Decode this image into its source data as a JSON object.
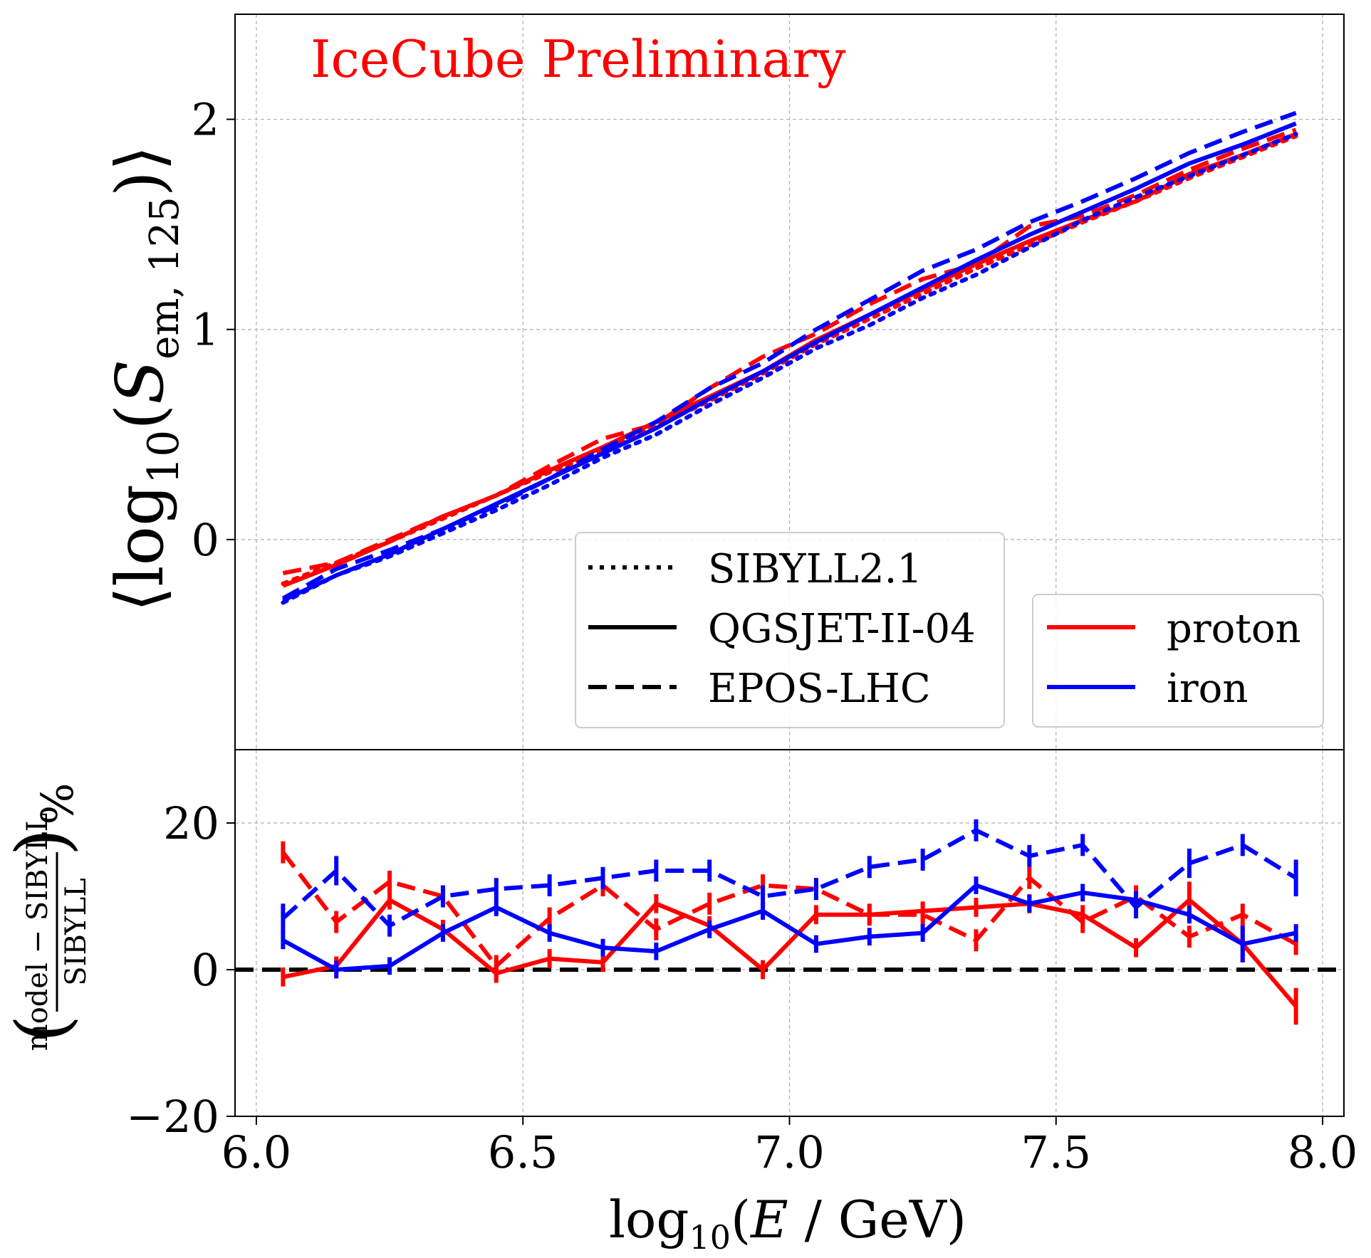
{
  "chart_data": [
    {
      "type": "line",
      "panel": "top",
      "annotation": "IceCube Preliminary",
      "ylabel_parts": {
        "open": "⟨log",
        "sub1": "10",
        "mid": "(",
        "var": "S",
        "sub2": "em, 125",
        "close": ")⟩"
      },
      "xlim": [
        5.96,
        8.04
      ],
      "ylim": [
        -1.0,
        2.5
      ],
      "yticks": [
        0,
        1,
        2
      ],
      "ytick_labels": [
        "0",
        "1",
        "2"
      ],
      "grid": true,
      "legend_models": {
        "placement": "lower-center",
        "entries": [
          {
            "label": "SIBYLL2.1",
            "style": "dotted"
          },
          {
            "label": "QGSJET-II-04",
            "style": "solid"
          },
          {
            "label": "EPOS-LHC",
            "style": "dashed"
          }
        ]
      },
      "legend_primaries": {
        "placement": "lower-right",
        "entries": [
          {
            "label": "proton",
            "color": "#ff0000"
          },
          {
            "label": "iron",
            "color": "#0000ff"
          }
        ]
      },
      "x": [
        6.05,
        6.15,
        6.25,
        6.35,
        6.45,
        6.55,
        6.65,
        6.75,
        6.85,
        6.95,
        7.05,
        7.15,
        7.25,
        7.35,
        7.45,
        7.55,
        7.65,
        7.75,
        7.85,
        7.95
      ],
      "series": [
        {
          "name": "proton SIBYLL2.1",
          "color": "#ff0000",
          "style": "dotted",
          "values": [
            -0.21,
            -0.11,
            -0.01,
            0.1,
            0.21,
            0.32,
            0.42,
            0.54,
            0.66,
            0.79,
            0.93,
            1.05,
            1.17,
            1.29,
            1.4,
            1.51,
            1.61,
            1.72,
            1.82,
            1.92
          ]
        },
        {
          "name": "proton QGSJET-II-04",
          "color": "#ff0000",
          "style": "solid",
          "values": [
            -0.22,
            -0.12,
            -0.01,
            0.11,
            0.21,
            0.33,
            0.44,
            0.56,
            0.68,
            0.8,
            0.95,
            1.07,
            1.19,
            1.31,
            1.42,
            1.52,
            1.61,
            1.74,
            1.83,
            1.93
          ]
        },
        {
          "name": "proton EPOS-LHC",
          "color": "#ff0000",
          "style": "dashed",
          "values": [
            -0.16,
            -0.11,
            0.0,
            0.11,
            0.21,
            0.35,
            0.48,
            0.55,
            0.72,
            0.87,
            0.98,
            1.12,
            1.24,
            1.31,
            1.49,
            1.54,
            1.64,
            1.76,
            1.86,
            1.95
          ]
        },
        {
          "name": "iron SIBYLL2.1",
          "color": "#0000ff",
          "style": "dotted",
          "values": [
            -0.3,
            -0.17,
            -0.08,
            0.03,
            0.14,
            0.26,
            0.39,
            0.5,
            0.64,
            0.77,
            0.91,
            1.02,
            1.15,
            1.26,
            1.39,
            1.52,
            1.63,
            1.73,
            1.83,
            1.93
          ]
        },
        {
          "name": "iron QGSJET-II-04",
          "color": "#0000ff",
          "style": "solid",
          "values": [
            -0.29,
            -0.17,
            -0.07,
            0.05,
            0.17,
            0.29,
            0.41,
            0.53,
            0.67,
            0.8,
            0.94,
            1.07,
            1.2,
            1.33,
            1.45,
            1.56,
            1.67,
            1.79,
            1.88,
            1.98
          ]
        },
        {
          "name": "iron EPOS-LHC",
          "color": "#0000ff",
          "style": "dashed",
          "values": [
            -0.28,
            -0.14,
            -0.05,
            0.05,
            0.16,
            0.29,
            0.43,
            0.56,
            0.72,
            0.84,
            1.0,
            1.14,
            1.28,
            1.38,
            1.51,
            1.61,
            1.72,
            1.84,
            1.94,
            2.03
          ]
        }
      ]
    },
    {
      "type": "line",
      "panel": "bottom",
      "xlabel_parts": {
        "pre": "log",
        "sub": "10",
        "mid": "(",
        "var": "E",
        "post": " / GeV)"
      },
      "ylabel_parts": {
        "numerator": "model − SIBYLL",
        "denominator": "SIBYLL",
        "suffix": "%"
      },
      "xlim": [
        5.96,
        8.04
      ],
      "ylim": [
        -20,
        30
      ],
      "xticks": [
        6.0,
        6.5,
        7.0,
        7.5,
        8.0
      ],
      "xtick_labels": [
        "6.0",
        "6.5",
        "7.0",
        "7.5",
        "8.0"
      ],
      "yticks": [
        -20,
        0,
        20
      ],
      "ytick_labels": [
        "−20",
        "0",
        "20"
      ],
      "grid": true,
      "reference_line": {
        "y": 0,
        "color": "#000000",
        "style": "dashed"
      },
      "x": [
        6.05,
        6.15,
        6.25,
        6.35,
        6.45,
        6.55,
        6.65,
        6.75,
        6.85,
        6.95,
        7.05,
        7.15,
        7.25,
        7.35,
        7.45,
        7.55,
        7.65,
        7.75,
        7.85,
        7.95
      ],
      "series": [
        {
          "name": "proton QGSJET-II-04",
          "color": "#ff0000",
          "style": "solid",
          "values": [
            -1,
            0.5,
            9.5,
            5.5,
            -0.5,
            1.5,
            1,
            9,
            6,
            0,
            7.5,
            7.5,
            8,
            8.5,
            9,
            7.5,
            3,
            9.5,
            3.5,
            -5
          ],
          "errors": [
            1.3,
            1.3,
            1.3,
            1.3,
            1.3,
            1.3,
            1.3,
            1.3,
            1.3,
            1.3,
            1.3,
            1.3,
            1.3,
            1.3,
            1.3,
            1.3,
            1.3,
            2.5,
            2.5,
            2.5
          ]
        },
        {
          "name": "proton EPOS-LHC",
          "color": "#ff0000",
          "style": "dashed",
          "values": [
            16,
            6.5,
            12,
            10,
            0.5,
            7,
            11.5,
            5.5,
            9,
            11.5,
            11,
            7.5,
            7.5,
            4,
            12.5,
            6.5,
            10,
            4.5,
            7.5,
            3.5
          ],
          "errors": [
            1.5,
            1.5,
            1.5,
            1.5,
            1.5,
            1.5,
            1.5,
            1.5,
            1.5,
            1.5,
            1.5,
            1.5,
            1.5,
            1.5,
            1.5,
            1.5,
            1.5,
            1.5,
            1.5,
            1.5
          ]
        },
        {
          "name": "iron QGSJET-II-04",
          "color": "#0000ff",
          "style": "solid",
          "values": [
            4,
            0,
            0.5,
            5,
            8.5,
            5,
            3,
            2.5,
            5.5,
            8,
            3.5,
            4.5,
            5,
            11.5,
            9,
            10.5,
            9.5,
            7.5,
            3.5,
            5
          ],
          "errors": [
            1.2,
            1.2,
            1.2,
            1.2,
            1.2,
            1.2,
            1.2,
            1.2,
            1.2,
            1.2,
            1.2,
            1.2,
            1.2,
            1.2,
            1.2,
            1.2,
            1.2,
            1.2,
            2.5,
            1.2
          ]
        },
        {
          "name": "iron EPOS-LHC",
          "color": "#0000ff",
          "style": "dashed",
          "values": [
            7,
            13.5,
            6,
            10,
            11,
            11.5,
            12.5,
            13.5,
            13.5,
            10,
            11,
            14,
            15,
            19,
            15.5,
            17,
            8.5,
            14.5,
            17,
            12.5
          ],
          "errors": [
            2,
            2,
            1.5,
            1.5,
            1.5,
            1.5,
            1.5,
            1.5,
            1.5,
            1.5,
            1.5,
            1.5,
            1.5,
            1.5,
            1.5,
            1.5,
            1.5,
            2,
            1.5,
            2.5
          ]
        }
      ]
    }
  ]
}
